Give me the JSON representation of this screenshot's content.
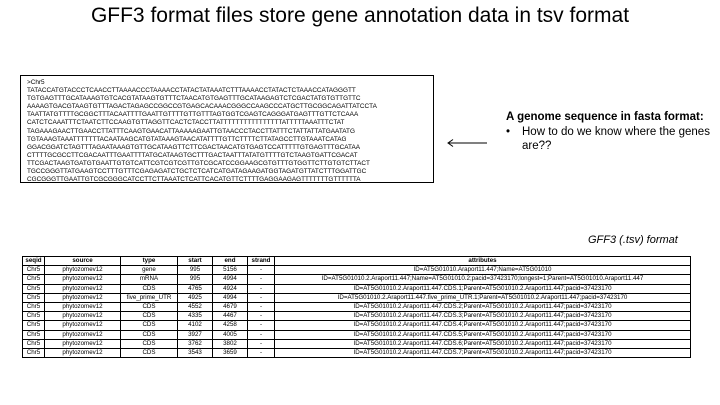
{
  "title": "GFF3 format files store gene annotation data in tsv format",
  "fasta": {
    "lines": [
      ">Chr5",
      "TATACCATGTACCCTCAACCTTAAAACCCTAAAACCTATACTATAAATCTTTAAAACCTATACTCTAAACCATAGGGTT",
      "TGTGAGTTTGCATAAAGTGTCACGTATAAGTGTTTCTAACATGTGAGTTTGCATAAGAGTCTCGACTATGTGTTGTTC",
      "AAAAGTGACGTAAGTGTTTAGACTAGAGCCGGCCGTGAGCACAAACGGGCCAAGCCCATGCTTGCGGCAGATTATCCTA",
      "TAATTATGTTTTGCGGCTTTACAATTTTGAATTGTTTTGTTGTTTAGTGGTCGAGTCAGGGATGAGTTTGTTCTCAAA",
      "CATCTCAAATTTCTAATCTTCCAAGTGTTAGGTTCACTCTACCTTATTTTTTTTTTTTTTTTATTTTTAAATTTCTAT",
      "TAGAAAGAACTTGAACCTTATTTCAAGTGAACATTAAAAAGAATTGTAACCCTACCTTATTTCTATTATTATGAATATG",
      "TGTAAAGTAAATTTTTTTACAATAAGCATGTATAAAGTAACATATTTTGTTCTTTTCTTATAGCCTTGTAAATCATAG",
      "GGACGGATCTAGTTTAGAATAAAGTGTTGCATAAGTTCTTCGACTAACATGTGAGTCCATTTTTGTGAGTTTGCATAA",
      "CTTTTGCGCCTTCGACAATTTGAATTTTATGCATAAGTGCTTTGACTAATTTATATGTTTTGTCTAAGTGATTCGACAT",
      "TTCGACTAAGTGATGTGAATTGTGTCATTCGTCGTCGTTGTCGCATCCGGAAGCGTGTTTGTGGTTCTTGTGTCTTACT",
      "TGCCGGGTTATGAAGTCCTTTGTTTCGAGAGATCTGCTCTCATCATGATAGAAGATGGTAGATGTTATCTTTGGATTGC",
      "CGCGGGTTGAATTGTCGCGGGCATCCTTCTTAAATCTCATTCACATGTTCTTTTGAGGAAGAGTTTTTTTGTTTTTTA",
      "TTATTTATTGTTTCCCTTAAGATTTATACTTTATTCCTTCTATTTTTGAGGACTTTATTTTGTCTGTTGGCTTTAG"
    ]
  },
  "callout": {
    "heading": "A genome sequence in fasta format:",
    "bullet": "How to do we know where the genes are??"
  },
  "table_caption": "GFF3 (.tsv) format",
  "table": {
    "headers": [
      "seqid",
      "source",
      "type",
      "start",
      "end",
      "strand",
      "attributes"
    ],
    "rows": [
      [
        "Chr5",
        "phytozomev12",
        "gene",
        "995",
        "5156",
        "-",
        "ID=AT5G01010.Araport11.447;Name=AT5G01010"
      ],
      [
        "Chr5",
        "phytozomev12",
        "mRNA",
        "995",
        "4994",
        "-",
        "ID=AT5G01010.2.Araport11.447;Name=AT5G01010.2;pacid=37423170;longest=1;Parent=AT5G01010.Araport11.447"
      ],
      [
        "Chr5",
        "phytozomev12",
        "CDS",
        "4765",
        "4924",
        "-",
        "ID=AT5G01010.2.Araport11.447.CDS.1;Parent=AT5G01010.2.Araport11.447;pacid=37423170"
      ],
      [
        "Chr5",
        "phytozomev12",
        "five_prime_UTR",
        "4925",
        "4994",
        "-",
        "ID=AT5G01010.2.Araport11.447.five_prime_UTR.1;Parent=AT5G01010.2.Araport11.447;pacid=37423170"
      ],
      [
        "Chr5",
        "phytozomev12",
        "CDS",
        "4552",
        "4679",
        "-",
        "ID=AT5G01010.2.Araport11.447.CDS.2;Parent=AT5G01010.2.Araport11.447;pacid=37423170"
      ],
      [
        "Chr5",
        "phytozomev12",
        "CDS",
        "4335",
        "4467",
        "-",
        "ID=AT5G01010.2.Araport11.447.CDS.3;Parent=AT5G01010.2.Araport11.447;pacid=37423170"
      ],
      [
        "Chr5",
        "phytozomev12",
        "CDS",
        "4102",
        "4258",
        "-",
        "ID=AT5G01010.2.Araport11.447.CDS.4;Parent=AT5G01010.2.Araport11.447;pacid=37423170"
      ],
      [
        "Chr5",
        "phytozomev12",
        "CDS",
        "3927",
        "4005",
        "-",
        "ID=AT5G01010.2.Araport11.447.CDS.5;Parent=AT5G01010.2.Araport11.447;pacid=37423170"
      ],
      [
        "Chr5",
        "phytozomev12",
        "CDS",
        "3762",
        "3802",
        "-",
        "ID=AT5G01010.2.Araport11.447.CDS.6;Parent=AT5G01010.2.Araport11.447;pacid=37423170"
      ],
      [
        "Chr5",
        "phytozomev12",
        "CDS",
        "3543",
        "3659",
        "-",
        "ID=AT5G01010.2.Araport11.447.CDS.7;Parent=AT5G01010.2.Araport11.447;pacid=37423170"
      ]
    ]
  }
}
